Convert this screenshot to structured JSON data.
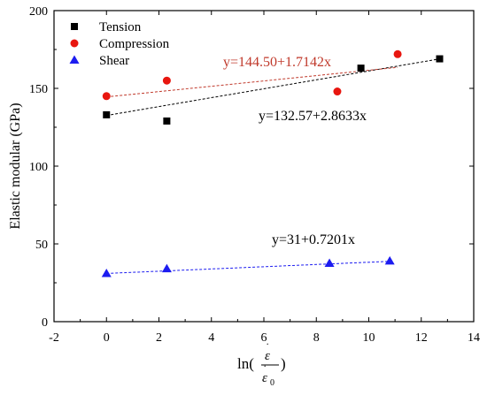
{
  "chart_data": {
    "type": "scatter",
    "xlabel": "ln(ε̇/ε̇₀)",
    "ylabel": "Elastic modular (GPa)",
    "xlim": [
      -2,
      14
    ],
    "ylim": [
      0,
      200
    ],
    "x_ticks": [
      -2,
      0,
      2,
      4,
      6,
      8,
      10,
      12,
      14
    ],
    "y_ticks": [
      0,
      50,
      100,
      150,
      200
    ],
    "legend_position": "top-left",
    "grid": false,
    "series": [
      {
        "name": "Tension",
        "marker": "square",
        "color": "#000000",
        "x": [
          0,
          2.3,
          9.7,
          12.7
        ],
        "y": [
          133,
          129,
          163,
          169
        ],
        "fit": {
          "label": "y=132.57+2.8633x",
          "intercept": 132.57,
          "slope": 2.8633,
          "x_range": [
            0,
            12.7
          ],
          "line_color": "#000000",
          "label_color": "#000000"
        }
      },
      {
        "name": "Compression",
        "marker": "circle",
        "color": "#e8160f",
        "x": [
          0,
          2.3,
          8.8,
          11.1
        ],
        "y": [
          145,
          155,
          148,
          172
        ],
        "fit": {
          "label": "y=144.50+1.7142x",
          "intercept": 144.5,
          "slope": 1.7142,
          "x_range": [
            0,
            11.1
          ],
          "line_color": "#c0392b",
          "label_color": "#c0392b"
        }
      },
      {
        "name": "Shear",
        "marker": "triangle",
        "color": "#1c1cf0",
        "x": [
          0,
          2.3,
          8.5,
          10.8
        ],
        "y": [
          31,
          34,
          37.5,
          39
        ],
        "fit": {
          "label": "y=31+0.7201x",
          "intercept": 31,
          "slope": 0.7201,
          "x_range": [
            0,
            10.8
          ],
          "line_color": "#1c1cf0",
          "label_color": "#000000"
        }
      }
    ]
  }
}
